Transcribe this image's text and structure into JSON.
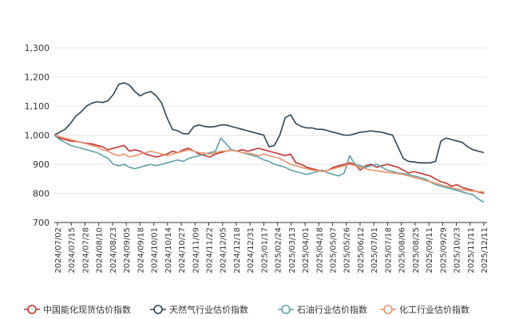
{
  "chart_data": {
    "type": "line",
    "title": "",
    "xlabel": "",
    "ylabel": "",
    "ylim": [
      700,
      1300
    ],
    "yticks": [
      "700",
      "800",
      "900",
      "1,000",
      "1,100",
      "1,200",
      "1,300"
    ],
    "yticks_values": [
      700,
      800,
      900,
      1000,
      1100,
      1200,
      1300
    ],
    "grid": "horizontal",
    "legend_position": "bottom",
    "x_ticks": [
      "2024/07/02",
      "2024/07/15",
      "2024/07/28",
      "2024/08/10",
      "2024/08/23",
      "2024/09/05",
      "2024/09/18",
      "2024/10/01",
      "2024/10/14",
      "2024/10/27",
      "2024/11/09",
      "2024/11/22",
      "2024/12/05",
      "2024/12/18",
      "2024/12/31",
      "2025/01/17",
      "2025/02/24",
      "2025/03/13",
      "2025/04/01",
      "2025/04/18",
      "2025/05/07",
      "2025/05/26",
      "2025/06/12",
      "2025/07/01",
      "2025/07/18",
      "2025/08/06",
      "2025/08/25",
      "2025/09/11",
      "2025/09/29",
      "2025/10/23",
      "2025/11/11",
      "2025/12/11"
    ],
    "series": [
      {
        "name": "中国能化现货估价指数",
        "color": "#c23531",
        "values": [
          1000,
          990,
          985,
          980,
          978,
          975,
          972,
          970,
          965,
          960,
          950,
          955,
          960,
          965,
          945,
          950,
          945,
          935,
          930,
          925,
          930,
          935,
          945,
          940,
          950,
          955,
          945,
          935,
          930,
          925,
          935,
          940,
          945,
          950,
          945,
          950,
          945,
          950,
          955,
          950,
          945,
          940,
          935,
          930,
          935,
          905,
          900,
          890,
          885,
          880,
          875,
          880,
          890,
          895,
          900,
          905,
          900,
          880,
          895,
          900,
          890,
          895,
          900,
          895,
          890,
          880,
          870,
          875,
          870,
          865,
          860,
          850,
          840,
          835,
          825,
          830,
          820,
          815,
          810,
          805,
          800
        ]
      },
      {
        "name": "天然气行业估价指数",
        "color": "#2f4554",
        "values": [
          1000,
          1010,
          1020,
          1040,
          1065,
          1080,
          1100,
          1110,
          1115,
          1112,
          1118,
          1140,
          1175,
          1180,
          1172,
          1150,
          1135,
          1145,
          1150,
          1135,
          1110,
          1060,
          1020,
          1015,
          1005,
          1005,
          1030,
          1035,
          1030,
          1028,
          1030,
          1035,
          1035,
          1030,
          1025,
          1020,
          1015,
          1010,
          1005,
          1000,
          960,
          965,
          1000,
          1060,
          1070,
          1040,
          1030,
          1025,
          1025,
          1020,
          1020,
          1015,
          1010,
          1005,
          1000,
          1000,
          1005,
          1010,
          1012,
          1015,
          1012,
          1010,
          1005,
          1000,
          960,
          920,
          910,
          908,
          905,
          905,
          905,
          910,
          980,
          990,
          985,
          980,
          975,
          960,
          950,
          945,
          940
        ]
      },
      {
        "name": "石油行业估价指数",
        "color": "#61a0a8",
        "values": [
          1000,
          985,
          975,
          965,
          960,
          955,
          950,
          945,
          940,
          930,
          920,
          900,
          895,
          900,
          890,
          885,
          890,
          895,
          900,
          895,
          900,
          905,
          910,
          915,
          910,
          920,
          925,
          930,
          935,
          940,
          945,
          990,
          970,
          950,
          945,
          940,
          935,
          930,
          925,
          915,
          910,
          900,
          895,
          890,
          880,
          875,
          870,
          865,
          870,
          875,
          880,
          870,
          865,
          860,
          870,
          930,
          900,
          895,
          890,
          895,
          900,
          890,
          880,
          875,
          870,
          868,
          865,
          860,
          855,
          850,
          840,
          830,
          825,
          820,
          815,
          810,
          805,
          800,
          795,
          780,
          770
        ]
      },
      {
        "name": "化工行业估价指数",
        "color": "#e8936b",
        "values": [
          1000,
          995,
          990,
          985,
          980,
          975,
          970,
          965,
          960,
          950,
          945,
          935,
          930,
          935,
          925,
          930,
          935,
          940,
          945,
          940,
          935,
          930,
          935,
          940,
          945,
          950,
          945,
          940,
          938,
          935,
          940,
          945,
          945,
          948,
          945,
          940,
          938,
          935,
          930,
          935,
          930,
          925,
          920,
          910,
          900,
          895,
          890,
          885,
          880,
          878,
          875,
          880,
          885,
          890,
          895,
          900,
          895,
          890,
          885,
          880,
          878,
          875,
          872,
          870,
          868,
          865,
          860,
          855,
          850,
          845,
          840,
          835,
          830,
          825,
          820,
          815,
          812,
          810,
          808,
          806,
          805
        ]
      }
    ]
  }
}
